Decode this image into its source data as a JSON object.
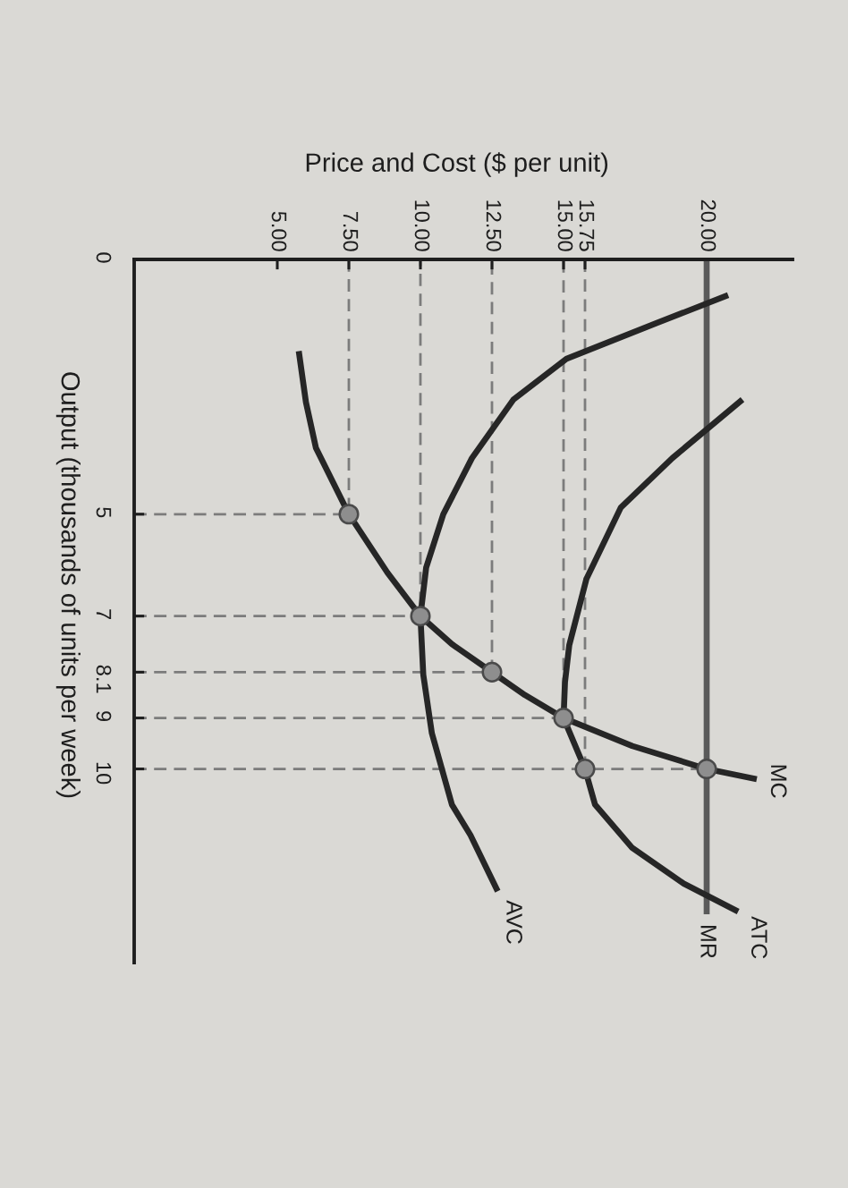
{
  "chart_data": {
    "type": "line",
    "xlabel": "Price and Cost ($ per unit)",
    "ylabel": "Output (thousands of units per week)",
    "xlim": [
      0,
      23
    ],
    "ylim": [
      13.8,
      0
    ],
    "xticks": [
      {
        "value": 5,
        "label": "5.00"
      },
      {
        "value": 7.5,
        "label": "7.50"
      },
      {
        "value": 10,
        "label": "10.00"
      },
      {
        "value": 12.5,
        "label": "12.50"
      },
      {
        "value": 15,
        "label": "15.00"
      },
      {
        "value": 15.75,
        "label": "15.75"
      },
      {
        "value": 20,
        "label": "20.00"
      }
    ],
    "yticks": [
      0,
      5,
      7,
      8.1,
      9,
      10
    ],
    "series": [
      {
        "line_style": "dashed",
        "color": "#7c7c7c",
        "x": [
          0,
          7.5,
          7.5
        ],
        "values": [
          5,
          5,
          0
        ]
      },
      {
        "line_style": "dashed",
        "color": "#7c7c7c",
        "x": [
          0,
          10,
          10
        ],
        "values": [
          7,
          7,
          0
        ]
      },
      {
        "line_style": "dashed",
        "color": "#7c7c7c",
        "x": [
          0,
          12.5,
          12.5
        ],
        "values": [
          8.1,
          8.1,
          0
        ]
      },
      {
        "line_style": "dashed",
        "color": "#7c7c7c",
        "x": [
          0,
          15,
          15
        ],
        "values": [
          9,
          9,
          0
        ]
      },
      {
        "line_style": "dashed",
        "color": "#7c7c7c",
        "x": [
          15.75,
          15.75
        ],
        "values": [
          0,
          10
        ]
      },
      {
        "line_style": "dashed",
        "color": "#7c7c7c",
        "x": [
          0,
          20
        ],
        "values": [
          10,
          10
        ]
      },
      {
        "name": "MR",
        "color": "#5a5a5a",
        "x": [
          20,
          20
        ],
        "values": [
          0,
          12.85
        ]
      },
      {
        "name": "MC",
        "color": "#262626",
        "x": [
          5.75,
          6.0,
          6.35,
          7.5,
          8.85,
          10,
          11.1,
          12.5,
          13.65,
          15,
          17.4,
          20,
          21.75
        ],
        "values": [
          1.8,
          2.8,
          3.7,
          5,
          6.15,
          7,
          7.55,
          8.1,
          8.55,
          9,
          9.55,
          10,
          10.2
        ]
      },
      {
        "name": "ATC",
        "color": "#262626",
        "x": [
          21.25,
          18.8,
          17.0,
          15.8,
          15.2,
          15.05,
          15,
          15.75,
          16.1,
          17.4,
          19.2,
          21.1
        ],
        "values": [
          2.75,
          3.9,
          4.87,
          6.27,
          7.57,
          8.3,
          9,
          10,
          10.7,
          11.55,
          12.25,
          12.8
        ]
      },
      {
        "name": "AVC",
        "color": "#262626",
        "x": [
          20.75,
          18.25,
          15.1,
          13.25,
          11.8,
          10.8,
          10.2,
          10,
          10.1,
          10.4,
          11.1,
          11.75,
          12.7
        ],
        "values": [
          0.7,
          1.25,
          1.95,
          2.75,
          3.9,
          5,
          6.05,
          7,
          8.15,
          9.3,
          10.7,
          11.3,
          12.4
        ]
      },
      {
        "type": "scatter",
        "marker": "circle",
        "color": "#8e8e8e",
        "x": [
          7.5,
          10,
          12.5,
          15,
          15.75,
          20
        ],
        "values": [
          5,
          7,
          8.1,
          9,
          10,
          10
        ]
      }
    ]
  }
}
